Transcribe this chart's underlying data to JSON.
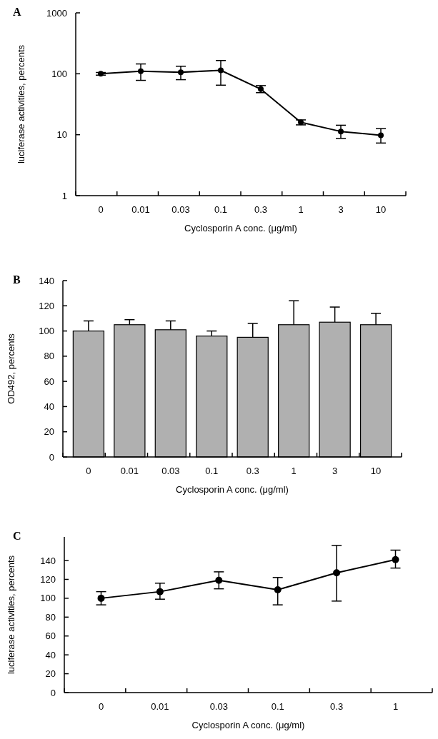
{
  "chart_data": [
    {
      "type": "line",
      "title": "A",
      "xlabel": "Cyclosporin A conc. (μg/ml)",
      "ylabel": "luciferase activities, percents",
      "categories": [
        "0",
        "0.01",
        "0.03",
        "0.1",
        "0.3",
        "1",
        "3",
        "10"
      ],
      "log": true,
      "ylim": [
        1,
        1000
      ],
      "yticks": [
        1,
        10,
        100,
        1000
      ],
      "marker": "circle",
      "line_style": "solid",
      "grid": false,
      "series": [
        {
          "color": "#000000",
          "values": [
            100,
            110,
            106,
            114,
            56,
            16,
            11.3,
            9.8
          ],
          "errors": [
            [
              95,
              105
            ],
            [
              78,
              145
            ],
            [
              80,
              133
            ],
            [
              65,
              165
            ],
            [
              49,
              64
            ],
            [
              14.5,
              17.5
            ],
            [
              8.7,
              14.3
            ],
            [
              7.3,
              12.6
            ]
          ]
        }
      ]
    },
    {
      "type": "bar",
      "title": "B",
      "xlabel": "Cyclosporin A conc. (μg/ml)",
      "ylabel": "OD492, percents",
      "categories": [
        "0",
        "0.01",
        "0.03",
        "0.1",
        "0.3",
        "1",
        "3",
        "10"
      ],
      "ylim": [
        0,
        140
      ],
      "yticks": [
        0,
        20,
        40,
        60,
        80,
        100,
        120,
        140
      ],
      "grid": false,
      "series": [
        {
          "color": "#b0b0b0",
          "values": [
            100,
            105,
            101,
            96,
            95,
            105,
            107,
            105
          ],
          "errors": [
            [
              100,
              108
            ],
            [
              105,
              109
            ],
            [
              101,
              108
            ],
            [
              96,
              100
            ],
            [
              95,
              106
            ],
            [
              105,
              124
            ],
            [
              107,
              119
            ],
            [
              105,
              114
            ]
          ]
        }
      ]
    },
    {
      "type": "line",
      "title": "C",
      "xlabel": "Cyclosporin A conc. (μg/ml)",
      "ylabel": "luciferase activities, percents",
      "categories": [
        "0",
        "0.01",
        "0.03",
        "0.1",
        "0.3",
        "1"
      ],
      "ylim": [
        0,
        165
      ],
      "yticks": [
        0,
        20,
        40,
        60,
        80,
        100,
        120,
        140
      ],
      "marker": "circle",
      "line_style": "solid",
      "grid": false,
      "series": [
        {
          "color": "#000000",
          "values": [
            100,
            107,
            119,
            109,
            127,
            141
          ],
          "errors": [
            [
              93,
              107
            ],
            [
              99,
              116
            ],
            [
              110,
              128
            ],
            [
              93,
              122
            ],
            [
              97,
              156
            ],
            [
              132,
              151
            ]
          ]
        }
      ]
    }
  ]
}
